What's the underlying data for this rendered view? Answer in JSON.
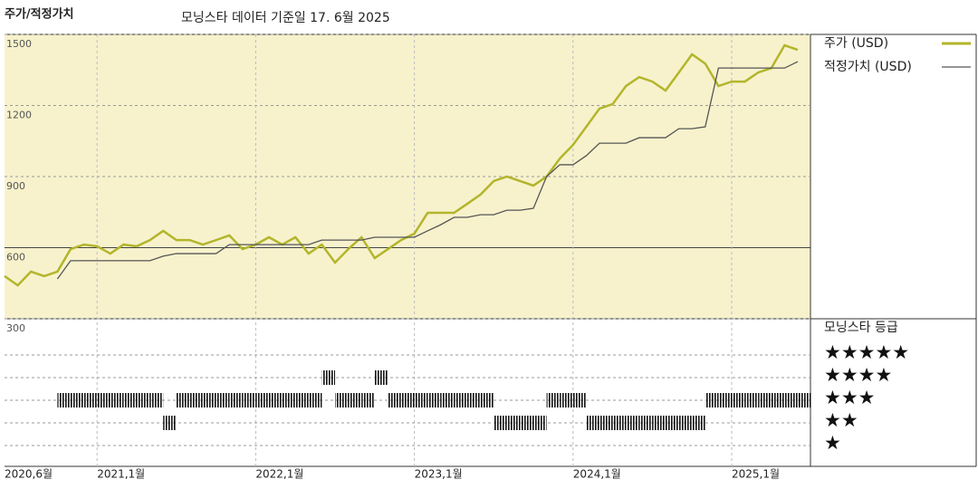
{
  "chart_data": {
    "type": "line",
    "title": "주가/적정가치",
    "subtitle": "모닝스타 데이터 기준일 17. 6월 2025",
    "x": [
      "2020-06",
      "2020-07",
      "2020-08",
      "2020-09",
      "2020-10",
      "2020-11",
      "2020-12",
      "2021-01",
      "2021-02",
      "2021-03",
      "2021-04",
      "2021-05",
      "2021-06",
      "2021-07",
      "2021-08",
      "2021-09",
      "2021-10",
      "2021-11",
      "2021-12",
      "2022-01",
      "2022-02",
      "2022-03",
      "2022-04",
      "2022-05",
      "2022-06",
      "2022-07",
      "2022-08",
      "2022-09",
      "2022-10",
      "2022-11",
      "2022-12",
      "2023-01",
      "2023-02",
      "2023-03",
      "2023-04",
      "2023-05",
      "2023-06",
      "2023-07",
      "2023-08",
      "2023-09",
      "2023-10",
      "2023-11",
      "2023-12",
      "2024-01",
      "2024-02",
      "2024-03",
      "2024-04",
      "2024-05",
      "2024-06",
      "2024-07",
      "2024-08",
      "2024-09",
      "2024-10",
      "2024-11",
      "2024-12",
      "2025-01",
      "2025-02",
      "2025-03",
      "2025-04",
      "2025-05",
      "2025-06"
    ],
    "series": [
      {
        "name": "주가 (USD)",
        "color": "#b3b52b",
        "values": [
          480,
          441,
          499,
          480,
          499,
          594,
          613,
          606,
          575,
          613,
          606,
          632,
          671,
          632,
          632,
          613,
          632,
          652,
          594,
          613,
          644,
          613,
          644,
          575,
          613,
          537,
          594,
          644,
          556,
          594,
          632,
          659,
          747,
          747,
          747,
          785,
          824,
          881,
          900,
          881,
          862,
          900,
          976,
          1034,
          1110,
          1187,
          1206,
          1282,
          1320,
          1301,
          1263,
          1339,
          1416,
          1377,
          1282,
          1301,
          1301,
          1339,
          1358,
          1454,
          1435
        ]
      },
      {
        "name": "적정가치 (USD)",
        "color": "#555555",
        "values": [
          null,
          null,
          null,
          null,
          468,
          545,
          545,
          545,
          545,
          545,
          545,
          545,
          564,
          575,
          575,
          575,
          575,
          613,
          613,
          613,
          613,
          613,
          613,
          613,
          632,
          632,
          632,
          632,
          644,
          644,
          644,
          644,
          671,
          697,
          728,
          728,
          739,
          739,
          758,
          758,
          766,
          900,
          950,
          950,
          988,
          1041,
          1041,
          1041,
          1064,
          1064,
          1064,
          1102,
          1102,
          1110,
          1358,
          1358,
          1358,
          1358,
          1358,
          1358,
          1385
        ]
      }
    ],
    "ylim": [
      300,
      1500
    ],
    "yticks": [
      300,
      600,
      900,
      1200,
      1500
    ],
    "xticks": [
      {
        "value": "2020-06",
        "label": "2020,6월"
      },
      {
        "value": "2021-01",
        "label": "2021,1월"
      },
      {
        "value": "2022-01",
        "label": "2022,1월"
      },
      {
        "value": "2023-01",
        "label": "2023,1월"
      },
      {
        "value": "2024-01",
        "label": "2024,1월"
      },
      {
        "value": "2025-01",
        "label": "2025,1월"
      }
    ],
    "grid": true,
    "rating": {
      "title": "모닝스타 등급",
      "labels": [
        "★★★★★",
        "★★★★",
        "★★★",
        "★★",
        "★"
      ],
      "levels": [
        5,
        4,
        3,
        2,
        1
      ],
      "values": [
        null,
        null,
        null,
        null,
        3,
        3,
        3,
        3,
        3,
        3,
        3,
        3,
        2,
        3,
        3,
        3,
        3,
        3,
        3,
        3,
        3,
        3,
        3,
        3,
        4,
        3,
        3,
        3,
        4,
        3,
        3,
        3,
        3,
        3,
        3,
        3,
        3,
        2,
        2,
        2,
        2,
        3,
        3,
        3,
        2,
        2,
        2,
        2,
        2,
        2,
        2,
        2,
        2,
        3,
        3,
        3,
        3,
        3,
        3,
        3,
        3
      ]
    }
  }
}
